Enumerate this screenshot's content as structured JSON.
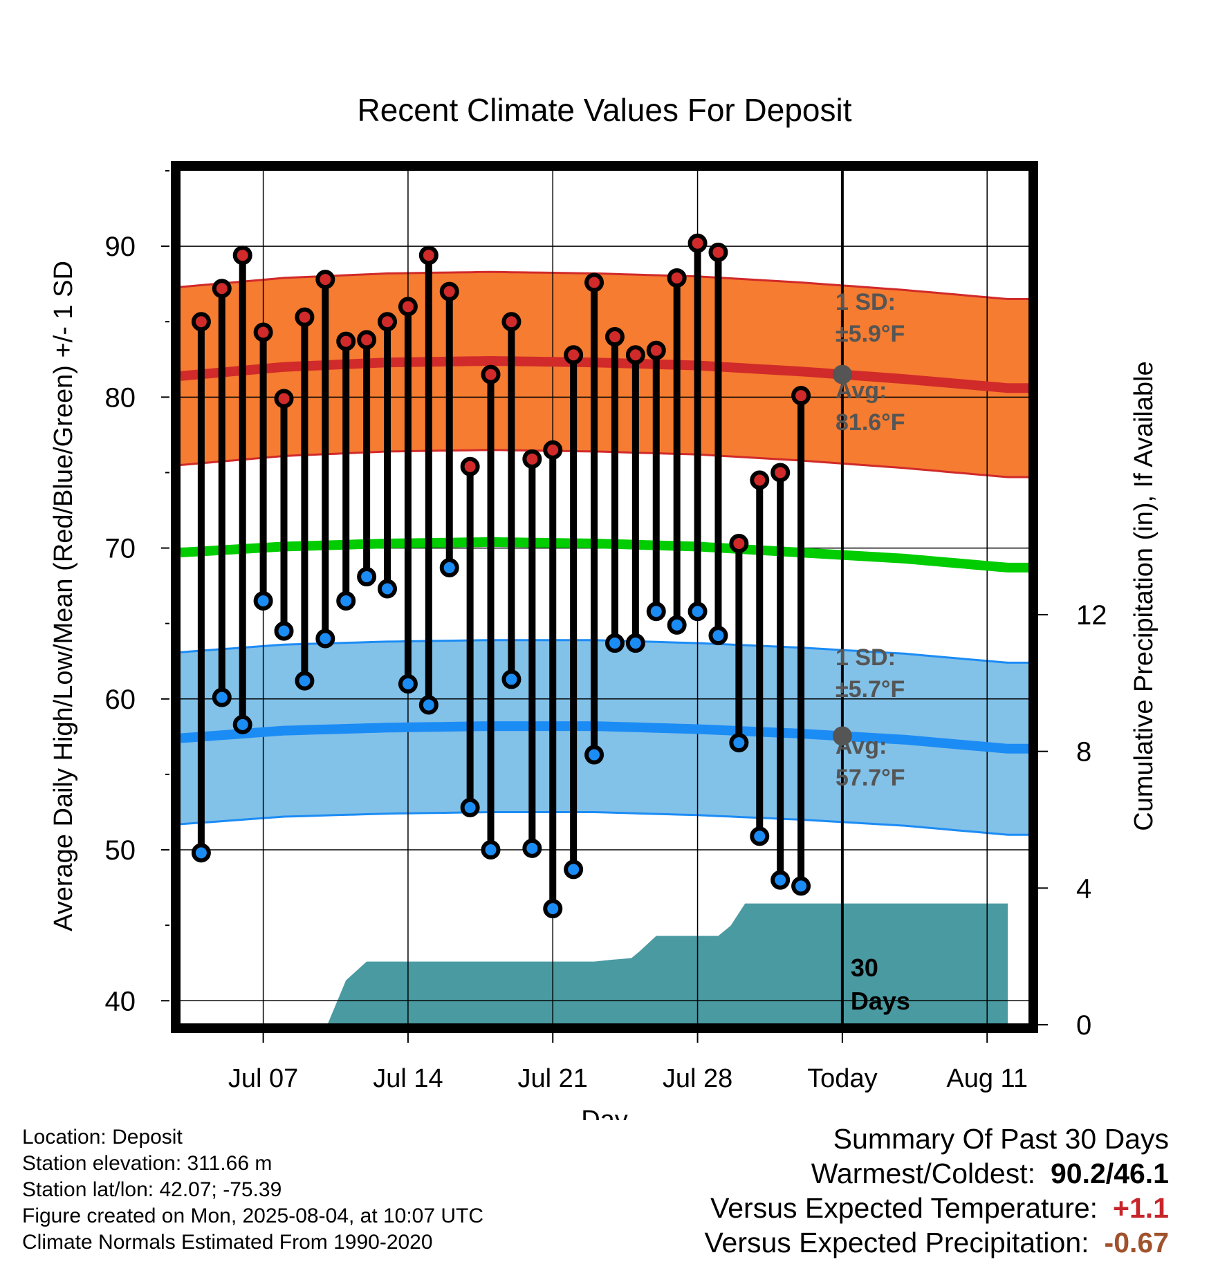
{
  "chart_data": {
    "type": "line",
    "title": "Recent Climate Values For Deposit",
    "xlabel": "Day",
    "ylabel": "Average Daily High/Low/Mean (Red/Blue/Green) +/- 1 SD",
    "y2label": "Cumulative Precipitation (in), If Available",
    "ylim": [
      38.5,
      95
    ],
    "y2lim": [
      0,
      14
    ],
    "yticks": [
      40,
      50,
      60,
      70,
      80,
      90
    ],
    "y2ticks": [
      0,
      4,
      8,
      12
    ],
    "x_axis": {
      "start": "Jul 03",
      "end": "Aug 13",
      "ticks": [
        {
          "day": 4,
          "label": "Jul 07"
        },
        {
          "day": 11,
          "label": "Jul 14"
        },
        {
          "day": 18,
          "label": "Jul 21"
        },
        {
          "day": 25,
          "label": "Jul 28"
        },
        {
          "day": 32,
          "label": "Today"
        },
        {
          "day": 39,
          "label": "Aug 11"
        }
      ]
    },
    "today_line": {
      "day": 32,
      "label": "30 Days"
    },
    "normals": {
      "days": [
        0,
        5,
        10,
        15,
        20,
        25,
        30,
        35,
        40
      ],
      "high_avg": [
        81.4,
        82.0,
        82.3,
        82.4,
        82.3,
        82.1,
        81.7,
        81.2,
        80.6
      ],
      "high_sd": 5.9,
      "low_avg": [
        57.4,
        57.9,
        58.1,
        58.2,
        58.2,
        58.0,
        57.7,
        57.3,
        56.7
      ],
      "low_sd": 5.7,
      "mean_avg": [
        69.7,
        70.1,
        70.3,
        70.4,
        70.3,
        70.1,
        69.7,
        69.3,
        68.7
      ]
    },
    "annotations": {
      "high_sd": "1 SD: ±5.9°F",
      "high_avg": "Avg: 81.6°F",
      "low_sd": "1 SD: ±5.7°F",
      "low_avg": "Avg: 57.7°F"
    },
    "daily": {
      "days": [
        1,
        2,
        3,
        4,
        5,
        6,
        7,
        8,
        9,
        10,
        11,
        12,
        13,
        14,
        15,
        16,
        17,
        18,
        19,
        20,
        21,
        22,
        23,
        24,
        25,
        26,
        27,
        28,
        29,
        30
      ],
      "high": [
        85.0,
        87.2,
        89.4,
        84.3,
        79.9,
        85.3,
        87.8,
        83.7,
        83.8,
        85.0,
        86.0,
        89.4,
        87.0,
        75.4,
        81.5,
        85.0,
        75.9,
        76.5,
        82.8,
        87.6,
        84.0,
        82.8,
        83.1,
        87.9,
        90.2,
        89.6,
        70.3,
        74.5,
        75.0,
        80.1
      ],
      "low": [
        49.8,
        60.1,
        58.3,
        66.5,
        64.5,
        61.2,
        64.0,
        66.5,
        68.1,
        67.3,
        61.0,
        59.6,
        68.7,
        52.8,
        50.0,
        61.3,
        50.1,
        46.1,
        48.7,
        56.3,
        63.7,
        63.7,
        65.8,
        64.9,
        65.8,
        64.2,
        57.1,
        50.9,
        48.0,
        47.6
      ]
    },
    "precip": {
      "days": [
        0,
        7.1,
        8.0,
        9.0,
        10.0,
        18.0,
        20.0,
        20.8,
        21.8,
        22.2,
        23.0,
        25.0,
        26.0,
        26.6,
        27.3,
        28.0,
        40.0
      ],
      "values": [
        0,
        0,
        1.3,
        1.85,
        1.85,
        1.85,
        1.85,
        1.9,
        1.95,
        2.15,
        2.6,
        2.6,
        2.6,
        2.9,
        3.55,
        3.55,
        3.55
      ]
    },
    "colors": {
      "high": "#d12a2a",
      "high_band": "#f57c30",
      "low": "#1c8cf5",
      "low_band": "#82c1e8",
      "mean": "#00cc00",
      "precip": "#4a9aa2",
      "annotation": "#555555"
    },
    "grid": true
  },
  "footer": {
    "location": "Location: Deposit",
    "elevation": "Station elevation: 311.66 m",
    "latlon": "Station lat/lon: 42.07; -75.39",
    "created": "Figure created on Mon, 2025-08-04, at 10:07 UTC",
    "normals": "Climate Normals Estimated From 1990-2020"
  },
  "summary": {
    "title": "Summary Of Past 30 Days",
    "warm_label": "Warmest/Coldest:",
    "warm_value": "90.2/46.1",
    "temp_label": "Versus Expected Temperature:",
    "temp_value": "+1.1",
    "precip_label": "Versus Expected Precipitation:",
    "precip_value": "-0.67"
  }
}
